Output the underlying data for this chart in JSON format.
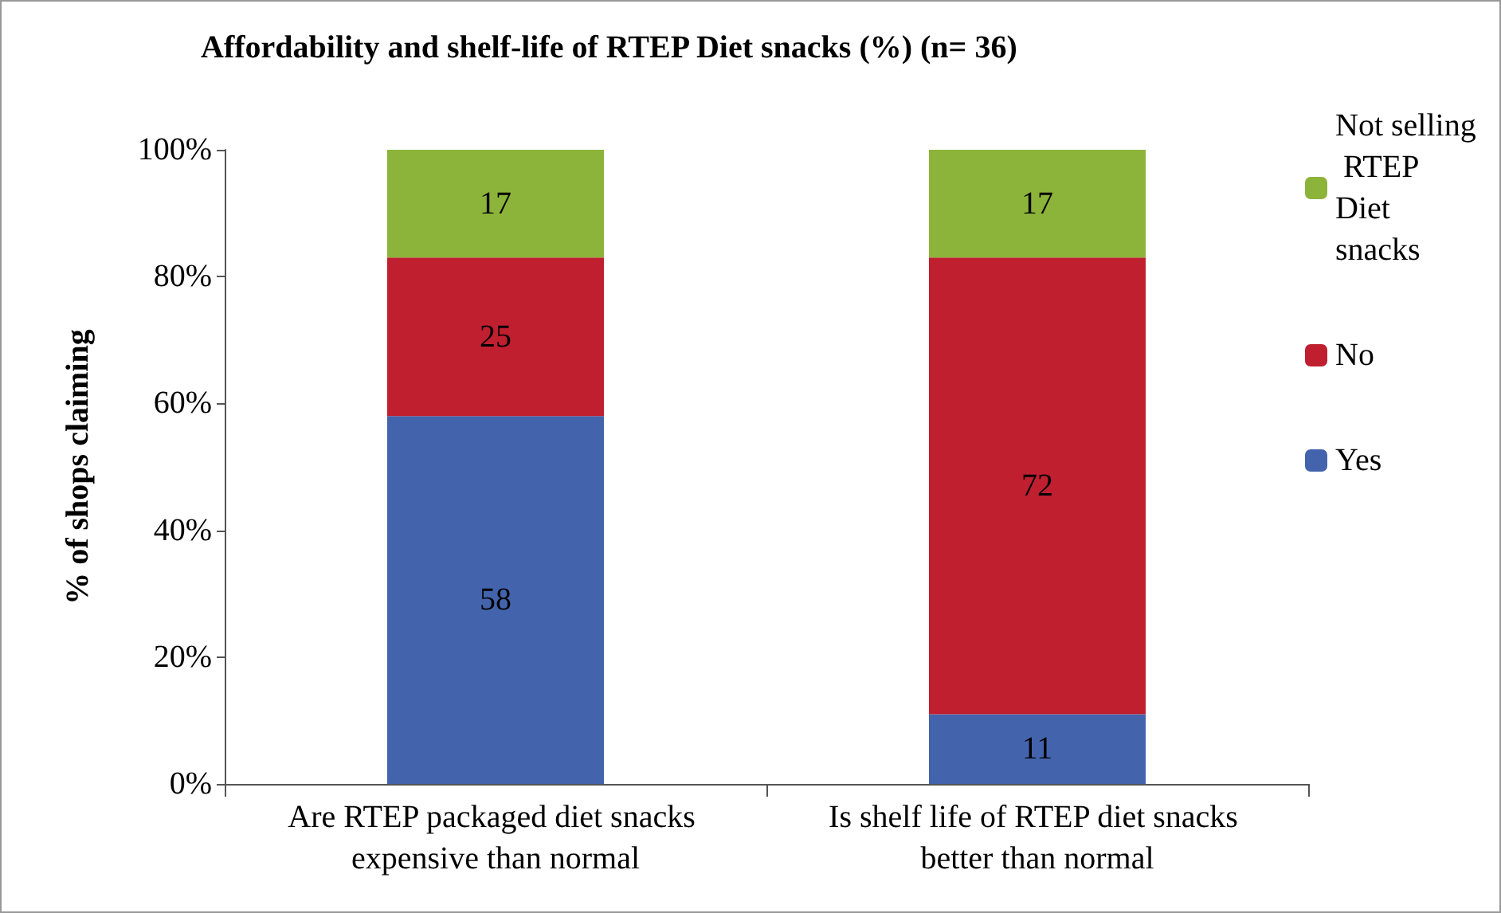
{
  "chart_data": {
    "type": "bar",
    "title": "Affordability and shelf-life of RTEP Diet snacks (%) (n= 36)",
    "ylabel": "% of shops claiming",
    "categories": [
      "Are RTEP packaged diet snacks expensive than normal",
      "Is shelf life of RTEP diet snacks better than normal"
    ],
    "series": [
      {
        "name": "Yes",
        "color": "#4364ad",
        "values": [
          58,
          11
        ]
      },
      {
        "name": "No",
        "color": "#bf1f2f",
        "values": [
          25,
          72
        ]
      },
      {
        "name": "Not selling RTEP Diet snacks",
        "color": "#8cb43a",
        "values": [
          17,
          17
        ]
      }
    ],
    "stacked": true,
    "data_labels": true,
    "grid": false,
    "legend": "right",
    "ylim": [
      0,
      100
    ],
    "yticks": [
      {
        "value": 0,
        "label": "0%"
      },
      {
        "value": 20,
        "label": "20%"
      },
      {
        "value": 40,
        "label": "40%"
      },
      {
        "value": 60,
        "label": "60%"
      },
      {
        "value": 80,
        "label": "80%"
      },
      {
        "value": 100,
        "label": "100%"
      }
    ]
  }
}
